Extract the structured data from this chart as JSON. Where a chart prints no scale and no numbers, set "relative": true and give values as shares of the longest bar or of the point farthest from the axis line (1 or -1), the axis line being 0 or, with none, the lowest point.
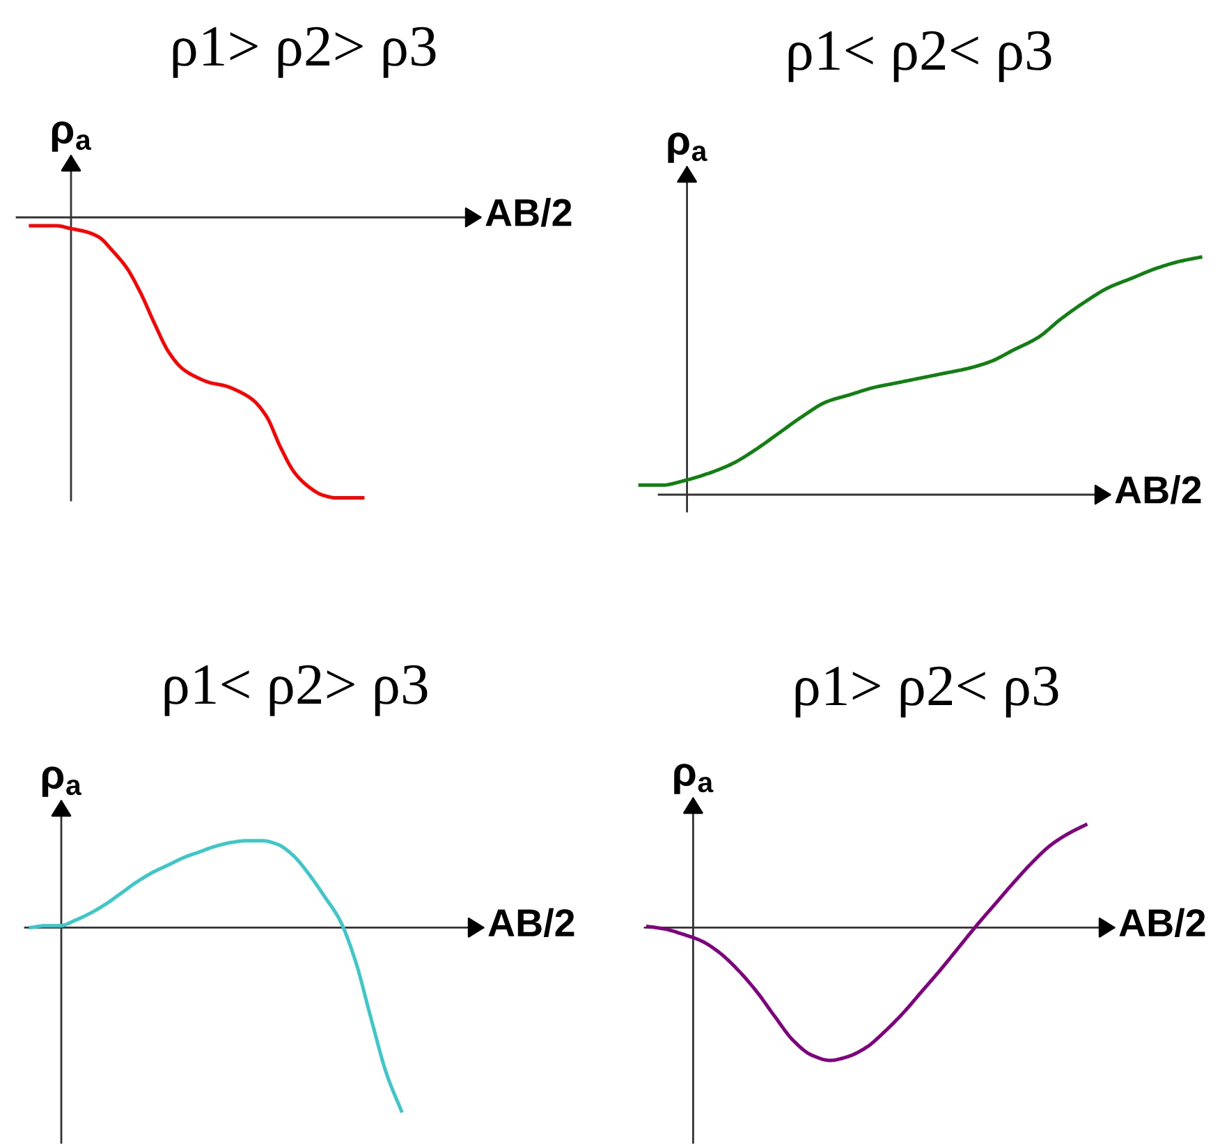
{
  "chart_data": [
    {
      "type": "line",
      "title": "ρ1> ρ2> ρ3",
      "xlabel": "AB/2",
      "ylabel": "ρ$_{a}$",
      "relative": true,
      "categories": [
        null,
        null,
        null,
        null,
        null,
        null,
        null,
        null,
        null,
        null,
        null,
        null,
        null,
        null,
        null,
        null,
        null,
        null,
        null,
        null,
        null,
        null,
        null,
        null,
        null
      ],
      "series": [
        {
          "color": "#ff0000",
          "values": [
            -0.03,
            -0.03,
            -0.03,
            -0.04,
            -0.05,
            -0.07,
            -0.12,
            -0.18,
            -0.27,
            -0.38,
            -0.48,
            -0.54,
            -0.57,
            -0.59,
            -0.6,
            -0.62,
            -0.65,
            -0.71,
            -0.82,
            -0.91,
            -0.96,
            -0.99,
            -1,
            -1,
            -1
          ]
        }
      ]
    },
    {
      "type": "line",
      "title": "ρ1< ρ2< ρ3",
      "xlabel": "AB/2",
      "ylabel": "ρ$_{a}$",
      "relative": true,
      "categories": [
        null,
        null,
        null,
        null,
        null,
        null,
        null,
        null,
        null,
        null,
        null,
        null,
        null,
        null,
        null,
        null,
        null,
        null,
        null,
        null,
        null,
        null,
        null,
        null,
        null
      ],
      "series": [
        {
          "color": "#108010",
          "values": [
            0.04,
            0.04,
            0.06,
            0.09,
            0.13,
            0.19,
            0.26,
            0.33,
            0.39,
            0.42,
            0.45,
            0.47,
            0.49,
            0.51,
            0.53,
            0.56,
            0.61,
            0.66,
            0.74,
            0.81,
            0.87,
            0.91,
            0.95,
            0.98,
            1
          ]
        }
      ]
    },
    {
      "type": "line",
      "title": "ρ1< ρ2> ρ3",
      "xlabel": "AB/2",
      "ylabel": "ρ$_{a}$",
      "relative": true,
      "categories": [
        null,
        null,
        null,
        null,
        null,
        null,
        null,
        null,
        null,
        null,
        null,
        null,
        null,
        null,
        null,
        null,
        null,
        null,
        null,
        null,
        null,
        null,
        null,
        null,
        null
      ],
      "series": [
        {
          "color": "#3cc8c8",
          "values": [
            0,
            0.01,
            0.01,
            0.04,
            0.08,
            0.13,
            0.19,
            0.25,
            0.3,
            0.34,
            0.38,
            0.41,
            0.44,
            0.46,
            0.47,
            0.47,
            0.45,
            0.39,
            0.29,
            0.17,
            0.04,
            -0.18,
            -0.49,
            -0.79,
            -1
          ]
        }
      ]
    },
    {
      "type": "line",
      "title": "ρ1> ρ2< ρ3",
      "xlabel": "AB/2",
      "ylabel": "ρ$_{a}$",
      "relative": true,
      "categories": [
        null,
        null,
        null,
        null,
        null,
        null,
        null,
        null,
        null,
        null,
        null,
        null,
        null,
        null,
        null,
        null,
        null,
        null,
        null,
        null,
        null,
        null,
        null,
        null,
        null
      ],
      "series": [
        {
          "color": "#800080",
          "values": [
            0.01,
            -0.01,
            -0.05,
            -0.1,
            -0.19,
            -0.32,
            -0.48,
            -0.67,
            -0.85,
            -0.96,
            -1,
            -0.97,
            -0.9,
            -0.78,
            -0.64,
            -0.48,
            -0.32,
            -0.15,
            0.02,
            0.18,
            0.34,
            0.49,
            0.62,
            0.71,
            0.78
          ]
        }
      ]
    }
  ]
}
